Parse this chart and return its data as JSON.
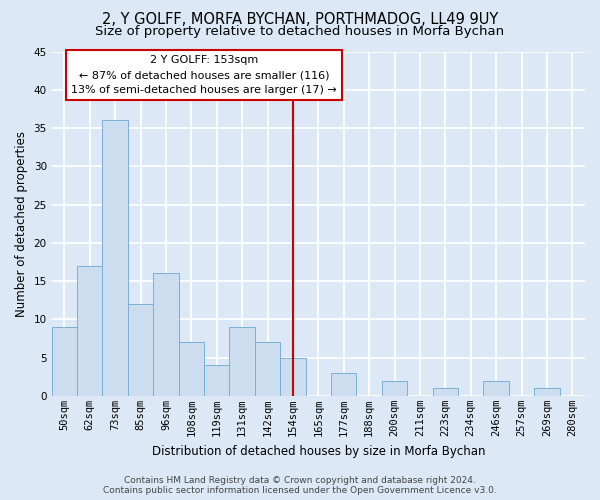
{
  "title": "2, Y GOLFF, MORFA BYCHAN, PORTHMADOG, LL49 9UY",
  "subtitle": "Size of property relative to detached houses in Morfa Bychan",
  "xlabel": "Distribution of detached houses by size in Morfa Bychan",
  "ylabel": "Number of detached properties",
  "bin_labels": [
    "50sqm",
    "62sqm",
    "73sqm",
    "85sqm",
    "96sqm",
    "108sqm",
    "119sqm",
    "131sqm",
    "142sqm",
    "154sqm",
    "165sqm",
    "177sqm",
    "188sqm",
    "200sqm",
    "211sqm",
    "223sqm",
    "234sqm",
    "246sqm",
    "257sqm",
    "269sqm",
    "280sqm"
  ],
  "bar_values": [
    9,
    17,
    36,
    12,
    16,
    7,
    4,
    9,
    7,
    5,
    0,
    3,
    0,
    2,
    0,
    1,
    0,
    2,
    0,
    1,
    0
  ],
  "bar_color": "#ccddf0",
  "bar_edge_color": "#7bafd4",
  "background_color": "#dce8f5",
  "grid_color": "#ffffff",
  "annotation_line_color": "#cc0000",
  "annotation_text_line1": "2 Y GOLFF: 153sqm",
  "annotation_text_line2": "← 87% of detached houses are smaller (116)",
  "annotation_text_line3": "13% of semi-detached houses are larger (17) →",
  "annotation_box_facecolor": "#ffffff",
  "annotation_box_edgecolor": "#cc0000",
  "ylim": [
    0,
    45
  ],
  "yticks": [
    0,
    5,
    10,
    15,
    20,
    25,
    30,
    35,
    40,
    45
  ],
  "footer_line1": "Contains HM Land Registry data © Crown copyright and database right 2024.",
  "footer_line2": "Contains public sector information licensed under the Open Government Licence v3.0.",
  "title_fontsize": 10.5,
  "subtitle_fontsize": 9.5,
  "xlabel_fontsize": 8.5,
  "ylabel_fontsize": 8.5,
  "tick_fontsize": 7.5,
  "annotation_fontsize": 8,
  "footer_fontsize": 6.5,
  "red_line_index": 9
}
